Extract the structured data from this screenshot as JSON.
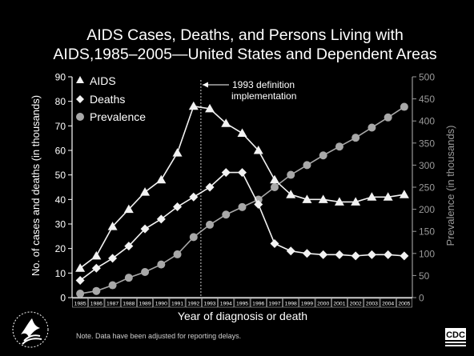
{
  "colors": {
    "background": "#000000",
    "text": "#ffffff",
    "left_axis": "#ffffff",
    "right_axis": "#9a9a9a",
    "series_white": "#f2f2f2",
    "series_gray": "#a8a8a8",
    "annotation_line": "#cccccc"
  },
  "chart_data": {
    "type": "line",
    "title_line1": "AIDS Cases, Deaths, and Persons Living with",
    "title_line2": "AIDS,1985–2005—United States and Dependent Areas",
    "xlabel": "Year of diagnosis or death",
    "ylabel_left": "No. of cases and deaths (in thousands)",
    "ylabel_right": "Prevalence (in thousands)",
    "x": [
      "1985",
      "1986",
      "1987",
      "1988",
      "1989",
      "1990",
      "1991",
      "1992",
      "1993",
      "1994",
      "1995",
      "1996",
      "1997",
      "1998",
      "1999",
      "2000",
      "2001",
      "2002",
      "2003",
      "2004",
      "2005"
    ],
    "ylim_left": [
      0,
      90
    ],
    "yticks_left": [
      0,
      10,
      20,
      30,
      40,
      50,
      60,
      70,
      80,
      90
    ],
    "ylim_right": [
      0,
      500
    ],
    "yticks_right": [
      0,
      50,
      100,
      150,
      200,
      250,
      300,
      350,
      400,
      450,
      500
    ],
    "legend_position": "top-left",
    "series": [
      {
        "name": "AIDS",
        "marker": "triangle",
        "axis": "left",
        "values": [
          12,
          17,
          29,
          36,
          43,
          48,
          59,
          78,
          77,
          71,
          67,
          60,
          48,
          42,
          40,
          40,
          39,
          39,
          41,
          41,
          42
        ]
      },
      {
        "name": "Deaths",
        "marker": "diamond",
        "axis": "left",
        "values": [
          7,
          12,
          16,
          21,
          28,
          32,
          37,
          41,
          45,
          51,
          51,
          38,
          22,
          19,
          18,
          17.5,
          17.5,
          17,
          17.5,
          17.5,
          17
        ]
      },
      {
        "name": "Prevalence",
        "marker": "circle",
        "axis": "right",
        "values": [
          9,
          15,
          28,
          45,
          58,
          75,
          98,
          137,
          165,
          188,
          205,
          222,
          250,
          278,
          300,
          322,
          342,
          362,
          385,
          408,
          432
        ]
      }
    ],
    "annotation": {
      "text_line1": "1993 definition",
      "text_line2": "implementation",
      "at_x": "1993"
    }
  },
  "footer": {
    "note": "Note. Data have been adjusted for reporting delays.",
    "logo_text": "CDC"
  }
}
